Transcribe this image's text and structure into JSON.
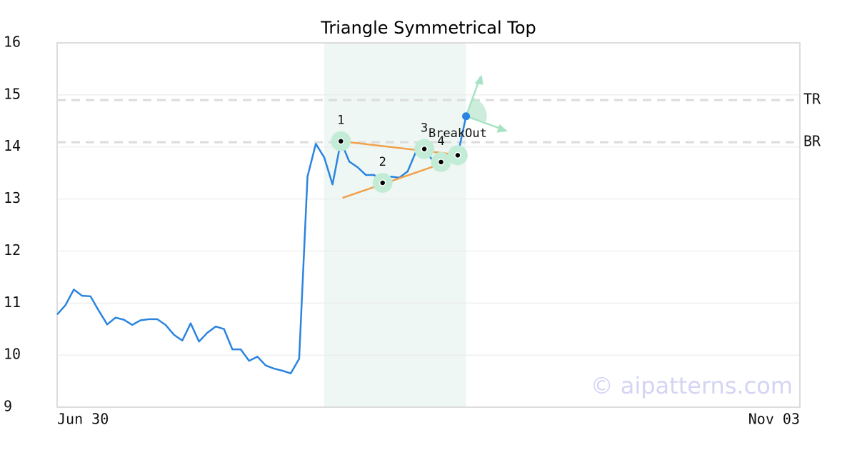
{
  "chart_data": {
    "type": "line",
    "title": "Triangle Symmetrical Top",
    "xlim": [
      0,
      89
    ],
    "xticks": [
      {
        "value": 0,
        "label": "Jun 30"
      },
      {
        "value": 89,
        "label": "Nov 03"
      }
    ],
    "ylim": [
      9,
      16
    ],
    "yticks": [
      9,
      10,
      11,
      12,
      13,
      14,
      15,
      16
    ],
    "grid": true,
    "color": "#2a84e0",
    "values": [
      10.78,
      10.96,
      11.26,
      11.14,
      11.13,
      10.85,
      10.59,
      10.72,
      10.68,
      10.58,
      10.67,
      10.69,
      10.69,
      10.58,
      10.39,
      10.28,
      10.61,
      10.26,
      10.43,
      10.55,
      10.5,
      10.11,
      10.11,
      9.89,
      9.97,
      9.8,
      9.74,
      9.7,
      9.65,
      9.93,
      13.43,
      14.06,
      13.8,
      13.28,
      14.11,
      13.72,
      13.61,
      13.46,
      13.46,
      13.31,
      13.43,
      13.41,
      13.53,
      13.91,
      13.96,
      13.74,
      13.71,
      13.8,
      13.84,
      14.59
    ],
    "pattern": {
      "region": [
        32,
        49
      ],
      "points": [
        {
          "label": "1",
          "x": 34,
          "value": 14.11
        },
        {
          "label": "2",
          "x": 39,
          "value": 13.31
        },
        {
          "label": "3",
          "x": 44,
          "value": 13.96
        },
        {
          "label": "4",
          "x": 46,
          "value": 13.71
        },
        {
          "label": null,
          "x": 48,
          "value": 13.84
        }
      ],
      "breakout": {
        "label": "BreakOut",
        "x": 49,
        "value": 14.59
      },
      "trendlines": [
        {
          "x": [
            34,
            49
          ],
          "values": [
            14.11,
            13.83
          ]
        },
        {
          "x": [
            34.2,
            49
          ],
          "values": [
            13.02,
            13.84
          ]
        }
      ],
      "levels": [
        {
          "label": "TR",
          "value": 14.9
        },
        {
          "label": "BR",
          "value": 14.09
        }
      ]
    },
    "watermark": "© aipatterns.com"
  }
}
